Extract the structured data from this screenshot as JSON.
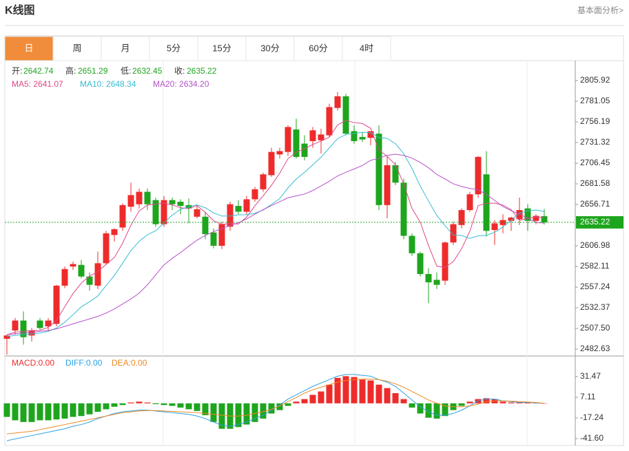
{
  "header": {
    "title": "K线图",
    "link": "基本面分析>"
  },
  "tabs": {
    "items": [
      "日",
      "周",
      "月",
      "5分",
      "15分",
      "30分",
      "60分",
      "4时"
    ],
    "active": 0,
    "active_color": "#f08c3a"
  },
  "chart_data": {
    "type": "candlestick",
    "up_color": "#ee2b2b",
    "down_color": "#1ea51e",
    "ylim": [
      2474.34,
      2829.96
    ],
    "yticks": [
      2805.92,
      2781.05,
      2756.19,
      2731.32,
      2706.45,
      2681.58,
      2656.71,
      2606.98,
      2582.11,
      2557.24,
      2532.37,
      {
        "value": 2507.5,
        "label": "2507.50"
      },
      2482.63
    ],
    "ohlc_labels": [
      "开:",
      "高:",
      "低:",
      "收:"
    ],
    "open": [
      2495,
      2505,
      2517,
      2499,
      2517,
      2510,
      2513,
      2559,
      2582,
      2584,
      2570,
      2559,
      2586,
      2620,
      2629,
      2654,
      2657,
      2672,
      2662,
      2633,
      2662,
      2660,
      2656,
      2642,
      2642,
      2623,
      2607,
      2630,
      2655,
      2648,
      2663,
      2675,
      2692,
      2717,
      2720,
      2747,
      2730,
      2733,
      2734,
      2740,
      2773,
      2787,
      2745,
      2738,
      2737,
      2742,
      2656,
      2704,
      2683,
      2619,
      2598,
      2573,
      2566,
      2565,
      2611,
      2632,
      2650,
      2669,
      2693,
      2626,
      2632,
      2637,
      2639,
      2652,
      2637,
      2642.74
    ],
    "high": [
      2500,
      2520,
      2528,
      2508,
      2520,
      2520,
      2560,
      2582,
      2588,
      2590,
      2575,
      2600,
      2625,
      2628,
      2658,
      2683,
      2676,
      2676,
      2665,
      2667,
      2665,
      2663,
      2664,
      2655,
      2648,
      2628,
      2636,
      2660,
      2662,
      2667,
      2678,
      2695,
      2725,
      2725,
      2752,
      2760,
      2740,
      2750,
      2748,
      2778,
      2792,
      2790,
      2752,
      2744,
      2745,
      2752,
      2715,
      2708,
      2688,
      2622,
      2600,
      2580,
      2575,
      2612,
      2636,
      2652,
      2672,
      2715,
      2721,
      2638,
      2645,
      2642,
      2665,
      2657,
      2645,
      2651.29
    ],
    "low": [
      2476,
      2500,
      2488,
      2492,
      2506,
      2505,
      2510,
      2556,
      2578,
      2568,
      2553,
      2555,
      2584,
      2612,
      2625,
      2648,
      2652,
      2650,
      2630,
      2630,
      2650,
      2645,
      2634,
      2640,
      2615,
      2604,
      2603,
      2625,
      2645,
      2645,
      2660,
      2672,
      2690,
      2712,
      2715,
      2712,
      2710,
      2725,
      2718,
      2738,
      2770,
      2740,
      2730,
      2732,
      2728,
      2650,
      2640,
      2680,
      2615,
      2595,
      2570,
      2538,
      2555,
      2560,
      2608,
      2628,
      2648,
      2665,
      2618,
      2608,
      2622,
      2625,
      2632,
      2625,
      2633,
      2632.45
    ],
    "close": [
      2499,
      2517,
      2497,
      2505,
      2508,
      2517,
      2559,
      2579,
      2585,
      2570,
      2560,
      2586,
      2622,
      2627,
      2656,
      2668,
      2672,
      2657,
      2633,
      2662,
      2657,
      2655,
      2652,
      2651,
      2621,
      2607,
      2633,
      2657,
      2648,
      2663,
      2675,
      2693,
      2720,
      2721,
      2750,
      2714,
      2714,
      2746,
      2741,
      2774,
      2787,
      2742,
      2733,
      2735,
      2745,
      2656,
      2704,
      2683,
      2619,
      2598,
      2573,
      2563,
      2560,
      2611,
      2633,
      2650,
      2669,
      2714,
      2625,
      2634,
      2638,
      2641,
      2650,
      2637,
      2643,
      2635.22
    ],
    "series": [
      {
        "label": "MA5: 2641.07",
        "color": "#e0468a",
        "values": [
          2500,
          2503,
          2504,
          2505,
          2505.2,
          2508.8,
          2517.2,
          2533.6,
          2549.6,
          2562,
          2570.6,
          2576,
          2584.6,
          2593,
          2610.2,
          2631.8,
          2649,
          2656,
          2657.2,
          2658.4,
          2656.2,
          2652.8,
          2651.8,
          2655.4,
          2647.2,
          2637.2,
          2632.8,
          2633.8,
          2633.2,
          2641.6,
          2655.2,
          2667.2,
          2679.8,
          2694.4,
          2711.8,
          2719.6,
          2723.8,
          2729,
          2733,
          2737.8,
          2752.4,
          2758,
          2755.4,
          2754.2,
          2748.4,
          2722.2,
          2714.6,
          2704.6,
          2681.4,
          2652,
          2635.4,
          2607.2,
          2582.6,
          2581,
          2588,
          2603.4,
          2624.6,
          2655.4,
          2658.2,
          2658.4,
          2656,
          2650.4,
          2637.6,
          2640,
          2641.8,
          2641.07
        ]
      },
      {
        "label": "MA10: 2648.34",
        "color": "#36bcd0",
        "values": [
          2498,
          2499,
          2500,
          2501,
          2502,
          2504,
          2508,
          2515,
          2524,
          2533.6,
          2539.7,
          2546.6,
          2559.1,
          2571.3,
          2586.1,
          2601.2,
          2612.5,
          2620.3,
          2625.1,
          2634.3,
          2644,
          2650.9,
          2653.9,
          2656.3,
          2652.8,
          2646.7,
          2642.8,
          2642.8,
          2644.3,
          2644.4,
          2646.2,
          2650,
          2656.8,
          2663.8,
          2676.7,
          2687.4,
          2695.5,
          2704.4,
          2713.7,
          2724.8,
          2736,
          2740.9,
          2742.2,
          2743.6,
          2743.1,
          2737.3,
          2736.3,
          2730,
          2717.8,
          2700.2,
          2678.8,
          2660.9,
          2643.6,
          2631.2,
          2620,
          2619.4,
          2615.9,
          2619,
          2619.6,
          2623.2,
          2629.7,
          2637.5,
          2646.5,
          2649.1,
          2650.1,
          2648.34
        ]
      },
      {
        "label": "MA20: 2634.20",
        "color": "#b650c8",
        "values": [
          2500,
          2501,
          2502,
          2503,
          2504,
          2505,
          2507,
          2510,
          2513,
          2516,
          2519,
          2522,
          2526,
          2531,
          2537,
          2543,
          2550,
          2560,
          2572,
          2584,
          2591.9,
          2598.8,
          2606.5,
          2613.8,
          2619.5,
          2624,
          2627.7,
          2631.6,
          2634.7,
          2639.4,
          2645.1,
          2650.5,
          2655.4,
          2660.1,
          2664.8,
          2667.1,
          2669.2,
          2673.6,
          2679,
          2684.6,
          2691.1,
          2695.5,
          2699.5,
          2703.7,
          2709.9,
          2712.4,
          2715.9,
          2717.2,
          2715.8,
          2712.5,
          2707.4,
          2700.9,
          2692.9,
          2687.4,
          2681.6,
          2678.4,
          2676.1,
          2674.5,
          2668.7,
          2661.7,
          2654.3,
          2649.2,
          2645.1,
          2640.2,
          2635.1,
          2634.2
        ]
      }
    ],
    "macd": {
      "ylim": [
        -50.53,
        55.83
      ],
      "yticks": [
        31.47,
        7.11,
        -17.24,
        {
          "value": -41.6,
          "label": "-41.60"
        }
      ],
      "histogram": {
        "label": "MACD:0.00",
        "color": "#ee2b2b",
        "values": [
          -16,
          -20,
          -22,
          -22,
          -20,
          -20,
          -19,
          -18,
          -16,
          -15,
          -13,
          -10,
          -7,
          -4,
          -2,
          1,
          2,
          1,
          -1,
          -2,
          -3,
          -5,
          -7,
          -9,
          -14,
          -22,
          -30,
          -30,
          -28,
          -25,
          -22,
          -18,
          -12,
          -8,
          -3,
          2,
          5,
          10,
          14,
          22,
          30,
          32,
          31,
          28,
          27,
          22,
          18,
          12,
          5,
          -5,
          -12,
          -17,
          -18,
          -15,
          -8,
          -3,
          2,
          5,
          6,
          5,
          2,
          1,
          1,
          1,
          0.5,
          0
        ]
      },
      "series": [
        {
          "label": "DIFF:0.00",
          "color": "#2aa0e0",
          "values": [
            -44,
            -42,
            -40,
            -38,
            -36,
            -34,
            -32,
            -30,
            -27,
            -25,
            -22,
            -18,
            -15,
            -12,
            -10,
            -9,
            -8,
            -8,
            -9,
            -10,
            -11,
            -12,
            -13,
            -15,
            -18,
            -22,
            -26,
            -27,
            -25,
            -22,
            -18,
            -14,
            -8,
            -2,
            5,
            10,
            15,
            20,
            24,
            28,
            32,
            34,
            34,
            33,
            32,
            28,
            25,
            20,
            12,
            4,
            -4,
            -10,
            -14,
            -14,
            -12,
            -8,
            -3,
            3,
            5,
            5,
            3,
            2,
            1,
            1,
            0.5,
            0
          ]
        },
        {
          "label": "DEA:0.00",
          "color": "#ee8822",
          "values": [
            -36,
            -35,
            -34,
            -33,
            -31,
            -29,
            -27,
            -25,
            -23,
            -21,
            -19,
            -17,
            -15,
            -13,
            -11,
            -10,
            -9,
            -8.5,
            -8.5,
            -9,
            -9.5,
            -10,
            -10.5,
            -11,
            -12,
            -13,
            -14,
            -15,
            -15,
            -14,
            -12,
            -10,
            -7,
            -3,
            2,
            7,
            12,
            16,
            19,
            22,
            25,
            27,
            28,
            28.5,
            28.5,
            28,
            26,
            23,
            19,
            14,
            9,
            4,
            0,
            -3,
            -4,
            -4,
            -3,
            -1,
            2,
            3,
            3,
            2.5,
            2,
            1.5,
            1,
            0
          ]
        }
      ]
    }
  }
}
